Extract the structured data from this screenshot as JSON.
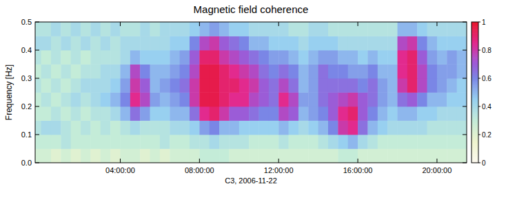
{
  "chart_data": {
    "type": "heatmap",
    "title": "Magnetic field coherence",
    "y_label": "Frequency [Hz]",
    "x_label": "C3, 2006-11-22",
    "xlim": [
      -0.3,
      21.5
    ],
    "ylim": [
      0,
      0.5
    ],
    "xticks": [
      {
        "value": 4,
        "label": "04:00:00"
      },
      {
        "value": 8,
        "label": "08:00:00"
      },
      {
        "value": 12,
        "label": "12:00:00"
      },
      {
        "value": 16,
        "label": "16:00:00"
      },
      {
        "value": 20,
        "label": "20:00:00"
      }
    ],
    "yticks": [
      {
        "value": 0,
        "label": "0.0"
      },
      0.1,
      0.2,
      0.3,
      0.4,
      0.5
    ],
    "x_edges": [
      -0.5,
      0,
      0.5,
      1,
      1.5,
      2,
      2.5,
      3,
      3.5,
      4,
      4.5,
      5,
      5.5,
      6,
      6.5,
      7,
      7.5,
      8,
      8.5,
      9,
      9.5,
      10,
      10.5,
      11,
      11.5,
      12,
      12.5,
      13,
      13.5,
      14,
      14.5,
      15,
      15.5,
      16,
      16.5,
      17,
      17.5,
      18,
      18.5,
      19,
      19.5,
      20,
      20.5,
      21,
      21.5
    ],
    "y_edges": [
      0,
      0.05,
      0.1,
      0.15,
      0.2,
      0.25,
      0.3,
      0.35,
      0.4,
      0.45,
      0.5
    ],
    "z": [
      [
        0.25,
        0.25,
        0.2,
        0.25,
        0.2,
        0.25,
        0.2,
        0.25,
        0.2,
        0.25,
        0.25,
        0.2,
        0.25,
        0.2,
        0.25,
        0.25,
        0.25,
        0.3,
        0.3,
        0.3,
        0.25,
        0.25,
        0.25,
        0.25,
        0.25,
        0.25,
        0.25,
        0.25,
        0.25,
        0.25,
        0.25,
        0.3,
        0.3,
        0.25,
        0.25,
        0.25,
        0.25,
        0.25,
        0.25,
        0.25,
        0.25,
        0.25,
        0.25,
        0.25
      ],
      [
        0.3,
        0.3,
        0.3,
        0.35,
        0.3,
        0.3,
        0.3,
        0.3,
        0.3,
        0.3,
        0.3,
        0.3,
        0.3,
        0.35,
        0.3,
        0.3,
        0.35,
        0.35,
        0.4,
        0.35,
        0.35,
        0.35,
        0.3,
        0.3,
        0.3,
        0.35,
        0.3,
        0.3,
        0.3,
        0.35,
        0.4,
        0.45,
        0.5,
        0.4,
        0.35,
        0.3,
        0.3,
        0.3,
        0.3,
        0.3,
        0.3,
        0.3,
        0.3,
        0.3
      ],
      [
        0.35,
        0.4,
        0.4,
        0.35,
        0.3,
        0.35,
        0.3,
        0.35,
        0.3,
        0.35,
        0.4,
        0.35,
        0.35,
        0.35,
        0.4,
        0.4,
        0.45,
        0.55,
        0.6,
        0.5,
        0.5,
        0.45,
        0.45,
        0.45,
        0.45,
        0.5,
        0.45,
        0.4,
        0.45,
        0.5,
        0.6,
        0.8,
        0.85,
        0.65,
        0.5,
        0.45,
        0.4,
        0.4,
        0.4,
        0.4,
        0.35,
        0.35,
        0.35,
        0.35
      ],
      [
        0.3,
        0.3,
        0.35,
        0.3,
        0.35,
        0.3,
        0.35,
        0.35,
        0.4,
        0.5,
        0.65,
        0.55,
        0.45,
        0.45,
        0.5,
        0.5,
        0.65,
        0.85,
        0.9,
        0.8,
        0.7,
        0.7,
        0.65,
        0.6,
        0.6,
        0.75,
        0.7,
        0.5,
        0.55,
        0.6,
        0.7,
        0.85,
        0.9,
        0.7,
        0.6,
        0.5,
        0.45,
        0.5,
        0.5,
        0.45,
        0.45,
        0.4,
        0.4,
        0.4
      ],
      [
        0.3,
        0.35,
        0.3,
        0.35,
        0.4,
        0.35,
        0.4,
        0.45,
        0.5,
        0.6,
        0.85,
        0.75,
        0.55,
        0.5,
        0.55,
        0.6,
        0.8,
        0.95,
        0.95,
        0.9,
        0.85,
        0.85,
        0.75,
        0.7,
        0.65,
        0.85,
        0.75,
        0.55,
        0.55,
        0.65,
        0.7,
        0.75,
        0.8,
        0.7,
        0.65,
        0.55,
        0.5,
        0.65,
        0.7,
        0.6,
        0.5,
        0.5,
        0.45,
        0.45
      ],
      [
        0.35,
        0.3,
        0.35,
        0.3,
        0.35,
        0.4,
        0.4,
        0.4,
        0.45,
        0.55,
        0.8,
        0.7,
        0.5,
        0.55,
        0.6,
        0.65,
        0.8,
        0.95,
        0.95,
        0.9,
        0.9,
        0.85,
        0.8,
        0.7,
        0.65,
        0.75,
        0.65,
        0.5,
        0.55,
        0.65,
        0.65,
        0.65,
        0.65,
        0.6,
        0.65,
        0.55,
        0.5,
        0.8,
        0.9,
        0.75,
        0.6,
        0.55,
        0.5,
        0.45
      ],
      [
        0.3,
        0.35,
        0.3,
        0.35,
        0.3,
        0.35,
        0.35,
        0.4,
        0.4,
        0.5,
        0.75,
        0.6,
        0.5,
        0.5,
        0.55,
        0.6,
        0.75,
        0.95,
        0.95,
        0.9,
        0.85,
        0.8,
        0.75,
        0.65,
        0.6,
        0.65,
        0.6,
        0.5,
        0.55,
        0.65,
        0.6,
        0.6,
        0.55,
        0.55,
        0.6,
        0.5,
        0.5,
        0.85,
        0.9,
        0.75,
        0.6,
        0.55,
        0.55,
        0.5
      ],
      [
        0.35,
        0.3,
        0.35,
        0.3,
        0.35,
        0.3,
        0.35,
        0.35,
        0.35,
        0.4,
        0.5,
        0.45,
        0.45,
        0.45,
        0.5,
        0.55,
        0.7,
        0.9,
        0.9,
        0.8,
        0.75,
        0.7,
        0.65,
        0.6,
        0.55,
        0.55,
        0.5,
        0.45,
        0.5,
        0.55,
        0.55,
        0.5,
        0.5,
        0.45,
        0.5,
        0.45,
        0.45,
        0.85,
        0.9,
        0.7,
        0.55,
        0.5,
        0.55,
        0.5
      ],
      [
        0.4,
        0.4,
        0.35,
        0.4,
        0.35,
        0.4,
        0.35,
        0.4,
        0.35,
        0.4,
        0.4,
        0.4,
        0.4,
        0.4,
        0.45,
        0.45,
        0.6,
        0.75,
        0.8,
        0.7,
        0.65,
        0.6,
        0.5,
        0.5,
        0.45,
        0.45,
        0.45,
        0.4,
        0.45,
        0.45,
        0.45,
        0.4,
        0.4,
        0.4,
        0.4,
        0.4,
        0.4,
        0.75,
        0.8,
        0.6,
        0.5,
        0.45,
        0.45,
        0.45
      ],
      [
        0.35,
        0.35,
        0.4,
        0.35,
        0.4,
        0.35,
        0.4,
        0.35,
        0.4,
        0.35,
        0.35,
        0.4,
        0.35,
        0.4,
        0.4,
        0.4,
        0.45,
        0.5,
        0.55,
        0.5,
        0.45,
        0.45,
        0.4,
        0.4,
        0.4,
        0.4,
        0.35,
        0.35,
        0.4,
        0.4,
        0.35,
        0.35,
        0.35,
        0.35,
        0.35,
        0.35,
        0.35,
        0.5,
        0.5,
        0.45,
        0.4,
        0.4,
        0.4,
        0.4
      ]
    ],
    "color_range": [
      0,
      1
    ],
    "color_ticks": [
      0,
      0.2,
      0.4,
      0.6,
      0.8,
      1
    ]
  }
}
